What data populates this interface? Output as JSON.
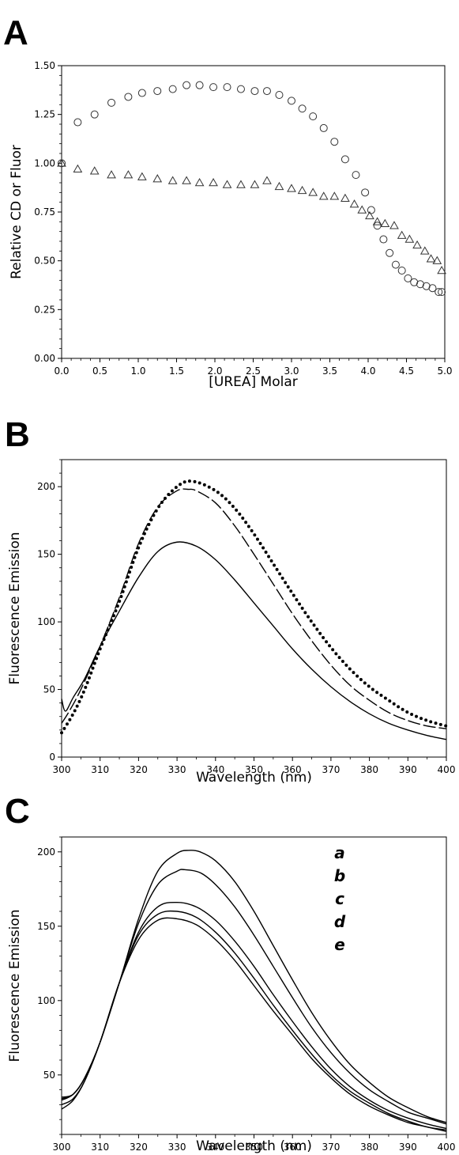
{
  "panels": [
    "A",
    "B",
    "C"
  ],
  "chart_data": [
    {
      "panel": "A",
      "type": "scatter",
      "xlabel": "[UREA] Molar",
      "ylabel": "Relative CD or Fluor",
      "xlim": [
        0,
        5
      ],
      "ylim": [
        0,
        1.5
      ],
      "xticks": [
        "0.0",
        "0.5",
        "1.0",
        "1.5",
        "2.0",
        "2.5",
        "3.0",
        "3.5",
        "4.0",
        "4.5",
        "5.0"
      ],
      "yticks": [
        "0.00",
        "0.25",
        "0.50",
        "0.75",
        "1.00",
        "1.25",
        "1.50"
      ],
      "grid": false,
      "series": [
        {
          "marker": "circle",
          "x": [
            0.0,
            0.21,
            0.43,
            0.65,
            0.87,
            1.05,
            1.25,
            1.45,
            1.63,
            1.8,
            1.98,
            2.16,
            2.34,
            2.52,
            2.68,
            2.84,
            3.0,
            3.14,
            3.28,
            3.42,
            3.56,
            3.7,
            3.84,
            3.96,
            4.04,
            4.12,
            4.2,
            4.28,
            4.36,
            4.44,
            4.52,
            4.6,
            4.68,
            4.76,
            4.84,
            4.92,
            4.96
          ],
          "y": [
            1.0,
            1.21,
            1.25,
            1.31,
            1.34,
            1.36,
            1.37,
            1.38,
            1.4,
            1.4,
            1.39,
            1.39,
            1.38,
            1.37,
            1.37,
            1.35,
            1.32,
            1.28,
            1.24,
            1.18,
            1.11,
            1.02,
            0.94,
            0.85,
            0.76,
            0.68,
            0.61,
            0.54,
            0.48,
            0.45,
            0.41,
            0.39,
            0.38,
            0.37,
            0.36,
            0.34,
            0.34
          ]
        },
        {
          "marker": "triangle",
          "x": [
            0.0,
            0.21,
            0.43,
            0.65,
            0.87,
            1.05,
            1.25,
            1.45,
            1.63,
            1.8,
            1.98,
            2.16,
            2.34,
            2.52,
            2.68,
            2.84,
            3.0,
            3.14,
            3.28,
            3.42,
            3.56,
            3.7,
            3.82,
            3.92,
            4.02,
            4.12,
            4.22,
            4.34,
            4.44,
            4.54,
            4.64,
            4.74,
            4.82,
            4.9,
            4.96
          ],
          "y": [
            1.0,
            0.97,
            0.96,
            0.94,
            0.94,
            0.93,
            0.92,
            0.91,
            0.91,
            0.9,
            0.9,
            0.89,
            0.89,
            0.89,
            0.91,
            0.88,
            0.87,
            0.86,
            0.85,
            0.83,
            0.83,
            0.82,
            0.79,
            0.76,
            0.73,
            0.7,
            0.69,
            0.68,
            0.63,
            0.61,
            0.58,
            0.55,
            0.51,
            0.5,
            0.45
          ]
        }
      ]
    },
    {
      "panel": "B",
      "type": "line",
      "xlabel": "Wavelength (nm)",
      "ylabel": "Fluorescence Emission",
      "xlim": [
        300,
        400
      ],
      "ylim": [
        0,
        220
      ],
      "xticks": [
        "300",
        "310",
        "320",
        "330",
        "340",
        "350",
        "360",
        "370",
        "380",
        "390",
        "400"
      ],
      "yticks": [
        "0",
        "50",
        "100",
        "150",
        "200"
      ],
      "grid": false,
      "series": [
        {
          "style": "solid",
          "x": [
            300,
            301,
            303,
            306,
            310,
            315,
            320,
            325,
            330,
            335,
            340,
            345,
            350,
            355,
            360,
            365,
            370,
            375,
            380,
            385,
            390,
            395,
            400
          ],
          "y": [
            43,
            34,
            44,
            58,
            82,
            108,
            133,
            152,
            159,
            156,
            146,
            131,
            114,
            97,
            80,
            65,
            52,
            41,
            32,
            25,
            20,
            16,
            13
          ]
        },
        {
          "style": "dashed",
          "x": [
            300,
            302,
            305,
            310,
            315,
            320,
            325,
            330,
            333,
            335,
            340,
            345,
            350,
            355,
            360,
            365,
            370,
            375,
            380,
            385,
            390,
            395,
            400
          ],
          "y": [
            25,
            34,
            50,
            82,
            118,
            158,
            185,
            197,
            198,
            197,
            188,
            171,
            150,
            128,
            106,
            86,
            68,
            53,
            42,
            33,
            27,
            23,
            21
          ]
        },
        {
          "style": "dotted",
          "x": [
            300,
            303,
            306,
            310,
            315,
            320,
            325,
            330,
            334,
            340,
            345,
            350,
            355,
            360,
            365,
            370,
            375,
            380,
            385,
            390,
            395,
            400
          ],
          "y": [
            18,
            32,
            50,
            80,
            115,
            155,
            184,
            200,
            204,
            197,
            184,
            165,
            143,
            121,
            100,
            81,
            65,
            52,
            42,
            33,
            27,
            23
          ]
        }
      ]
    },
    {
      "panel": "C",
      "type": "line",
      "xlabel": "Wavelength (nm)",
      "ylabel": "Fluorescence Emission",
      "xlim": [
        300,
        400
      ],
      "ylim": [
        10,
        210
      ],
      "xticks": [
        "300",
        "310",
        "320",
        "330",
        "340",
        "350",
        "360",
        "370",
        "380",
        "390",
        "400"
      ],
      "yticks": [
        "50",
        "100",
        "150",
        "200"
      ],
      "grid": false,
      "legend_labels": [
        "a",
        "b",
        "c",
        "d",
        "e"
      ],
      "series": [
        {
          "name": "a",
          "x": [
            300,
            303,
            306,
            310,
            315,
            320,
            325,
            330,
            333,
            336,
            340,
            345,
            350,
            355,
            360,
            365,
            370,
            375,
            380,
            385,
            390,
            395,
            400
          ],
          "y": [
            35,
            37,
            48,
            72,
            112,
            155,
            187,
            199,
            201,
            200,
            194,
            180,
            160,
            137,
            114,
            92,
            73,
            57,
            45,
            35,
            28,
            22,
            18
          ]
        },
        {
          "name": "b",
          "x": [
            300,
            303,
            306,
            310,
            315,
            320,
            325,
            330,
            332,
            336,
            340,
            345,
            350,
            355,
            360,
            365,
            370,
            375,
            380,
            385,
            390,
            395,
            400
          ],
          "y": [
            34,
            37,
            48,
            72,
            112,
            152,
            178,
            187,
            188,
            186,
            178,
            163,
            144,
            123,
            102,
            82,
            65,
            51,
            40,
            32,
            25,
            21,
            17
          ]
        },
        {
          "name": "c",
          "x": [
            300,
            303,
            306,
            310,
            315,
            320,
            325,
            330,
            335,
            340,
            345,
            350,
            355,
            360,
            365,
            370,
            375,
            380,
            385,
            390,
            395,
            400
          ],
          "y": [
            33,
            37,
            48,
            72,
            112,
            146,
            163,
            166,
            163,
            154,
            140,
            123,
            104,
            86,
            69,
            54,
            42,
            33,
            26,
            21,
            17,
            14
          ]
        },
        {
          "name": "d",
          "x": [
            300,
            303,
            306,
            310,
            315,
            320,
            325,
            330,
            335,
            340,
            345,
            350,
            355,
            360,
            365,
            370,
            375,
            380,
            385,
            390,
            395,
            400
          ],
          "y": [
            30,
            34,
            46,
            72,
            112,
            144,
            158,
            160,
            156,
            146,
            132,
            115,
            97,
            80,
            64,
            50,
            39,
            31,
            24,
            19,
            15,
            13
          ]
        },
        {
          "name": "e",
          "x": [
            300,
            303,
            306,
            310,
            315,
            320,
            325,
            330,
            335,
            340,
            345,
            350,
            355,
            360,
            365,
            370,
            375,
            380,
            385,
            390,
            395,
            400
          ],
          "y": [
            27,
            33,
            46,
            72,
            112,
            141,
            154,
            155,
            151,
            141,
            127,
            110,
            93,
            77,
            61,
            48,
            37,
            29,
            23,
            18,
            15,
            12
          ]
        }
      ]
    }
  ]
}
